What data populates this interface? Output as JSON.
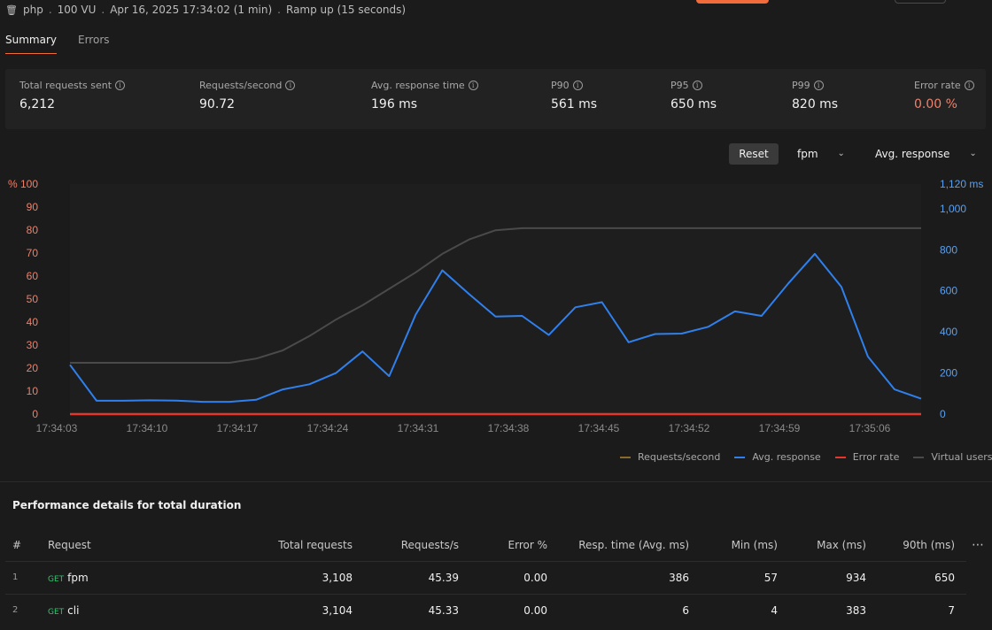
{
  "header": {
    "project": "php",
    "vu": "100 VU",
    "started": "Apr 16, 2025 17:34:02 (1 min)",
    "profile": "Ramp up (15 seconds)"
  },
  "tabs": [
    "Summary",
    "Errors"
  ],
  "stats": [
    {
      "label": "Total requests sent",
      "value": "6,212"
    },
    {
      "label": "Requests/second",
      "value": "90.72"
    },
    {
      "label": "Avg. response time",
      "value": "196 ms"
    },
    {
      "label": "P90",
      "value": "561 ms"
    },
    {
      "label": "P95",
      "value": "650 ms"
    },
    {
      "label": "P99",
      "value": "820 ms"
    },
    {
      "label": "Error rate",
      "value": "0.00 %"
    }
  ],
  "controls": {
    "reset": "Reset",
    "request_filter": "fpm",
    "metric": "Avg. response"
  },
  "chart_data": {
    "type": "line",
    "x_labels": [
      "17:34:03",
      "17:34:10",
      "17:34:17",
      "17:34:24",
      "17:34:31",
      "17:34:38",
      "17:34:45",
      "17:34:52",
      "17:34:59",
      "17:35:06"
    ],
    "y_left": {
      "unit": "%",
      "ticks": [
        0,
        10,
        20,
        30,
        40,
        50,
        60,
        70,
        80,
        90,
        100
      ]
    },
    "y_right": {
      "unit": "ms",
      "top_label": "1,120 ms",
      "ticks": [
        "0",
        "200",
        "400",
        "600",
        "800",
        "1,000"
      ],
      "max": 1120
    },
    "series": [
      {
        "name": "Avg. response",
        "color": "#2f80ed",
        "axis": "right",
        "values": [
          240,
          65,
          65,
          67,
          66,
          60,
          60,
          70,
          120,
          145,
          200,
          305,
          185,
          485,
          700,
          585,
          475,
          478,
          385,
          520,
          545,
          350,
          390,
          392,
          425,
          500,
          478,
          635,
          780,
          620,
          280,
          120,
          75
        ]
      },
      {
        "name": "Virtual users",
        "color": "#4a4a4a",
        "axis": "right",
        "values": [
          250,
          250,
          250,
          250,
          250,
          250,
          250,
          270,
          310,
          380,
          460,
          530,
          610,
          690,
          780,
          850,
          895,
          905,
          905,
          905,
          905,
          905,
          905,
          905,
          905,
          905,
          905,
          905,
          905,
          905,
          905,
          905,
          905
        ]
      },
      {
        "name": "Error rate",
        "color": "#e5362b",
        "axis": "left",
        "values": [
          0,
          0,
          0,
          0,
          0,
          0,
          0,
          0,
          0,
          0,
          0,
          0,
          0,
          0,
          0,
          0,
          0,
          0,
          0,
          0,
          0,
          0,
          0,
          0,
          0,
          0,
          0,
          0,
          0,
          0,
          0,
          0,
          0
        ]
      },
      {
        "name": "Requests/second",
        "color": "#8a6a2a",
        "axis": "left",
        "values": []
      }
    ],
    "legend": [
      "Requests/second",
      "Avg. response",
      "Error rate",
      "Virtual users"
    ]
  },
  "perf": {
    "title": "Performance details for total duration",
    "columns": [
      "#",
      "Request",
      "Total requests",
      "Requests/s",
      "Error %",
      "Resp. time (Avg. ms)",
      "Min (ms)",
      "Max (ms)",
      "90th (ms)"
    ],
    "rows": [
      {
        "idx": "1",
        "method": "GET",
        "name": "fpm",
        "total": "3,108",
        "rps": "45.39",
        "err": "0.00",
        "avg": "386",
        "min": "57",
        "max": "934",
        "p90": "650"
      },
      {
        "idx": "2",
        "method": "GET",
        "name": "cli",
        "total": "3,104",
        "rps": "45.33",
        "err": "0.00",
        "avg": "6",
        "min": "4",
        "max": "383",
        "p90": "7"
      }
    ]
  }
}
